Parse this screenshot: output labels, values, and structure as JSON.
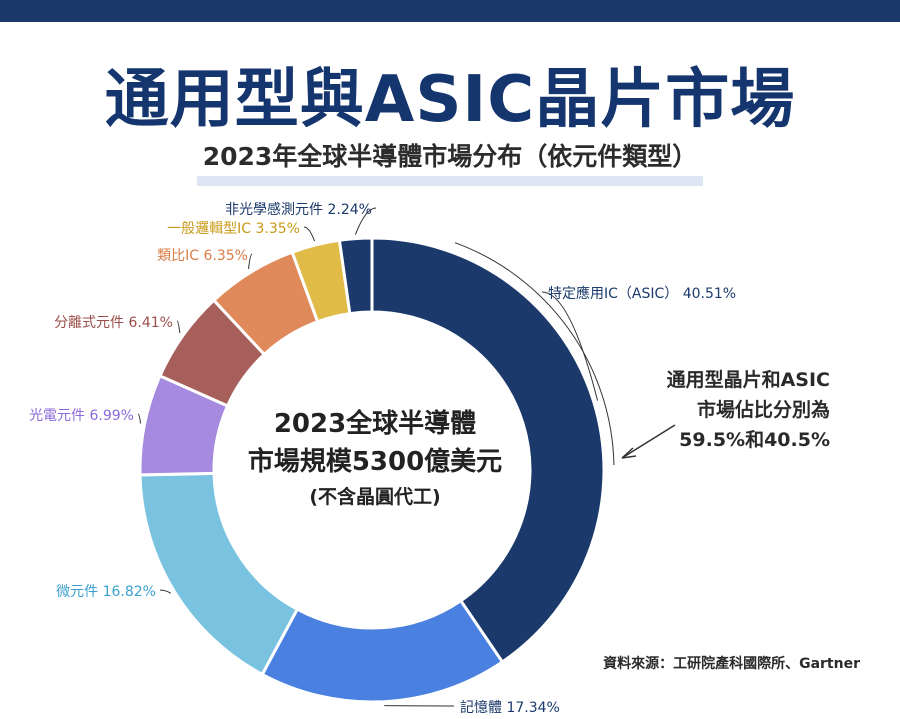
{
  "title": "通用型與ASIC晶片市場",
  "subtitle": "2023年全球半導體市場分布（依元件類型）",
  "center_text": [
    "2023全球半導體",
    "市場規模5300億美元",
    "(不含晶圓代工)"
  ],
  "callout": [
    "通用型晶片和ASIC",
    "市場佔比分別為",
    "59.5%和40.5%"
  ],
  "source": "資料來源：工研院產科國際所、Gartner",
  "chart_data": {
    "type": "pie",
    "title": "2023年全球半導體市場分布（依元件類型）",
    "slices": [
      {
        "label": "特定應用IC（ASIC）",
        "value": 40.51,
        "value_text": "40.51%",
        "color": "#1b3a6b"
      },
      {
        "label": "記憶體",
        "value": 17.34,
        "value_text": "17.34%",
        "color": "#4a80e0"
      },
      {
        "label": "微元件",
        "value": 16.82,
        "value_text": "16.82%",
        "color": "#79c2e0"
      },
      {
        "label": "光電元件",
        "value": 6.99,
        "value_text": "6.99%",
        "color": "#a58ae0"
      },
      {
        "label": "分離式元件",
        "value": 6.41,
        "value_text": "6.41%",
        "color": "#a65f5a"
      },
      {
        "label": "類比IC",
        "value": 6.35,
        "value_text": "6.35%",
        "color": "#e0895a"
      },
      {
        "label": "一般邏輯型IC",
        "value": 3.35,
        "value_text": "3.35%",
        "color": "#e0bb47"
      },
      {
        "label": "非光學感測元件",
        "value": 2.24,
        "value_text": "2.24%",
        "color": "#1b3a6b"
      }
    ]
  }
}
